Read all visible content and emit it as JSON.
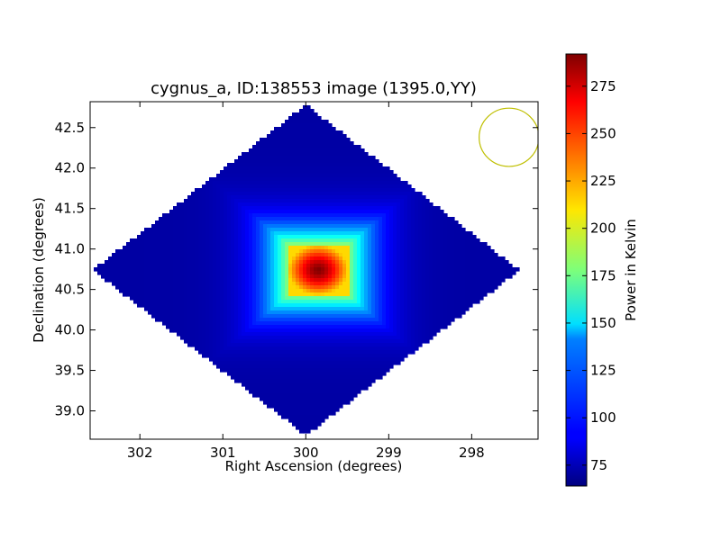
{
  "chart_data": {
    "type": "heatmap",
    "title": "cygnus_a, ID:138553 image (1395.0,YY)",
    "xlabel": "Right Ascension (degrees)",
    "ylabel": "Declination (degrees)",
    "colorbar_label": "Power in Kelvin",
    "xlim": [
      302.6,
      297.2
    ],
    "ylim": [
      38.65,
      42.82
    ],
    "x_inverted": true,
    "xticks": [
      302,
      301,
      300,
      299,
      298
    ],
    "yticks": [
      39.0,
      39.5,
      40.0,
      40.5,
      41.0,
      41.5,
      42.0,
      42.5
    ],
    "colorbar_range": [
      64,
      292
    ],
    "colorbar_ticks": [
      75,
      100,
      125,
      150,
      175,
      200,
      225,
      250,
      275
    ],
    "colormap": "jet",
    "footprint": {
      "shape": "diamond",
      "center": [
        300.0,
        40.74
      ],
      "half_width_ra": 2.57,
      "half_height_dec": 2.04,
      "background_value": 72
    },
    "source": {
      "center": [
        299.85,
        40.74
      ],
      "peak_value": 292,
      "ra_halfwidth": 0.36,
      "dec_halfwidth": 0.31
    },
    "beam": {
      "center": [
        297.55,
        42.38
      ],
      "radius_deg": 0.36,
      "color": "#bfbf00"
    },
    "grid": false
  }
}
